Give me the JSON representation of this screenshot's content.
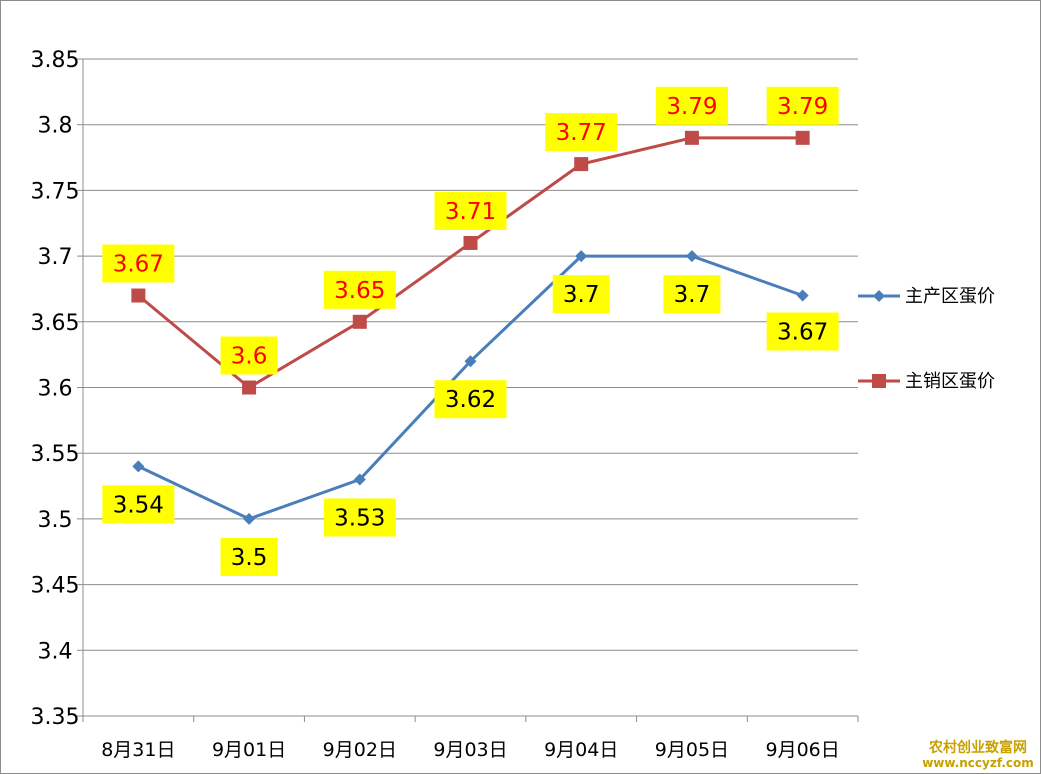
{
  "chart_data": {
    "type": "line",
    "title": "",
    "xlabel": "",
    "ylabel": "",
    "categories": [
      "8月31日",
      "9月01日",
      "9月02日",
      "9月03日",
      "9月04日",
      "9月05日",
      "9月06日"
    ],
    "ylim": [
      3.35,
      3.85
    ],
    "yticks": [
      "3.35",
      "3.4",
      "3.45",
      "3.5",
      "3.55",
      "3.6",
      "3.65",
      "3.7",
      "3.75",
      "3.8",
      "3.85"
    ],
    "ytick_values": [
      3.35,
      3.4,
      3.45,
      3.5,
      3.55,
      3.6,
      3.65,
      3.7,
      3.75,
      3.8,
      3.85
    ],
    "grid": true,
    "legend_position": "right",
    "series": [
      {
        "name": "主产区蛋价",
        "values": [
          3.54,
          3.5,
          3.53,
          3.62,
          3.7,
          3.7,
          3.67
        ],
        "labels": [
          "3.54",
          "3.5",
          "3.53",
          "3.62",
          "3.7",
          "3.7",
          "3.67"
        ],
        "color": "#4a7ebb",
        "marker": "diamond",
        "label_color": "#000000",
        "label_bg": "#ffff00"
      },
      {
        "name": "主销区蛋价",
        "values": [
          3.67,
          3.6,
          3.65,
          3.71,
          3.77,
          3.79,
          3.79
        ],
        "labels": [
          "3.67",
          "3.6",
          "3.65",
          "3.71",
          "3.77",
          "3.79",
          "3.79"
        ],
        "color": "#be4b48",
        "marker": "square",
        "label_color": "#ff0000",
        "label_bg": "#ffff00"
      }
    ]
  },
  "watermark": {
    "line1": "农村创业致富网",
    "line2": "www.nccyzf.com"
  }
}
